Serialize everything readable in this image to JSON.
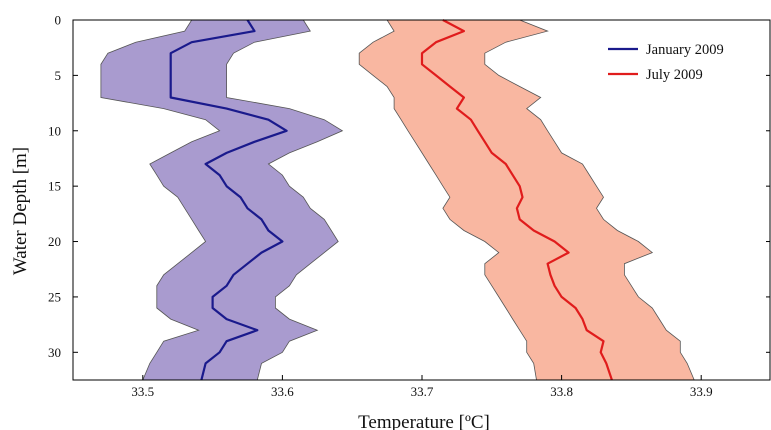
{
  "chart_data": {
    "type": "line",
    "xlabel": "Temperature [ºC]",
    "ylabel": "Water Depth [m]",
    "xlim": [
      33.45,
      33.95
    ],
    "ylim": [
      32.5,
      0
    ],
    "xticks": [
      33.5,
      33.6,
      33.7,
      33.8,
      33.9
    ],
    "yticks": [
      0,
      5,
      10,
      15,
      20,
      25,
      30
    ],
    "y_axis_inverted": true,
    "grid": false,
    "legend_position": "top-right",
    "series": [
      {
        "name": "January 2009",
        "color": "#1a1a8c",
        "band_color": "#a99bcf",
        "depth": [
          0,
          1,
          2,
          3,
          4,
          5,
          6,
          7,
          8,
          9,
          10,
          11,
          12,
          13,
          14,
          15,
          16,
          17,
          18,
          19,
          20,
          21,
          22,
          23,
          24,
          25,
          26,
          27,
          28,
          29,
          30,
          31,
          32.5
        ],
        "mean": [
          33.575,
          33.58,
          33.535,
          33.52,
          33.52,
          33.52,
          33.52,
          33.52,
          33.56,
          33.59,
          33.603,
          33.58,
          33.56,
          33.545,
          33.555,
          33.56,
          33.57,
          33.575,
          33.585,
          33.59,
          33.6,
          33.585,
          33.575,
          33.565,
          33.56,
          33.55,
          33.55,
          33.56,
          33.582,
          33.56,
          33.555,
          33.545,
          33.542
        ],
        "lower": [
          33.535,
          33.53,
          33.495,
          33.475,
          33.47,
          33.47,
          33.47,
          33.47,
          33.515,
          33.545,
          33.555,
          33.535,
          33.52,
          33.505,
          33.51,
          33.515,
          33.525,
          33.53,
          33.535,
          33.54,
          33.545,
          33.535,
          33.525,
          33.515,
          33.51,
          33.51,
          33.51,
          33.52,
          33.54,
          33.515,
          33.51,
          33.505,
          33.5
        ],
        "upper": [
          33.615,
          33.62,
          33.58,
          33.565,
          33.56,
          33.56,
          33.56,
          33.56,
          33.605,
          33.63,
          33.643,
          33.625,
          33.605,
          33.59,
          33.6,
          33.605,
          33.615,
          33.62,
          33.63,
          33.635,
          33.64,
          33.63,
          33.62,
          33.61,
          33.605,
          33.595,
          33.595,
          33.605,
          33.625,
          33.605,
          33.6,
          33.585,
          33.582
        ]
      },
      {
        "name": "July 2009",
        "color": "#e01c1c",
        "band_color": "#f9b7a1",
        "depth": [
          0,
          1,
          2,
          3,
          4,
          5,
          6,
          7,
          8,
          9,
          10,
          11,
          12,
          13,
          14,
          15,
          16,
          17,
          18,
          19,
          20,
          21,
          22,
          23,
          24,
          25,
          26,
          27,
          28,
          29,
          30,
          31,
          32.5
        ],
        "mean": [
          33.715,
          33.73,
          33.71,
          33.7,
          33.7,
          33.71,
          33.72,
          33.73,
          33.725,
          33.735,
          33.74,
          33.745,
          33.75,
          33.76,
          33.765,
          33.77,
          33.772,
          33.768,
          33.77,
          33.78,
          33.795,
          33.805,
          33.79,
          33.792,
          33.795,
          33.8,
          33.81,
          33.815,
          33.818,
          33.83,
          33.828,
          33.832,
          33.836
        ],
        "lower": [
          33.675,
          33.68,
          33.665,
          33.655,
          33.655,
          33.665,
          33.675,
          33.68,
          33.68,
          33.685,
          33.69,
          33.695,
          33.7,
          33.705,
          33.71,
          33.715,
          33.72,
          33.715,
          33.72,
          33.73,
          33.745,
          33.755,
          33.745,
          33.745,
          33.75,
          33.755,
          33.76,
          33.765,
          33.77,
          33.775,
          33.775,
          33.78,
          33.782
        ],
        "upper": [
          33.77,
          33.79,
          33.76,
          33.745,
          33.745,
          33.755,
          33.77,
          33.785,
          33.775,
          33.785,
          33.79,
          33.795,
          33.8,
          33.815,
          33.82,
          33.825,
          33.83,
          33.825,
          33.83,
          33.84,
          33.855,
          33.865,
          33.845,
          33.845,
          33.85,
          33.855,
          33.865,
          33.87,
          33.875,
          33.885,
          33.885,
          33.89,
          33.895
        ]
      }
    ]
  }
}
